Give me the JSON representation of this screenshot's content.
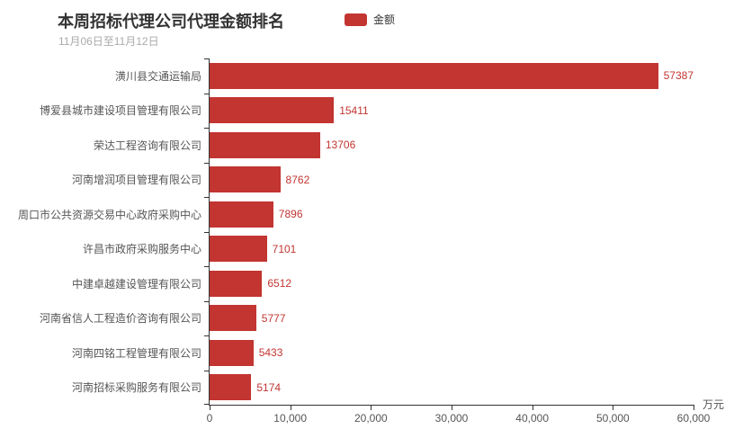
{
  "header": {
    "title": "本周招标代理公司代理金额排名",
    "subtitle": "11月06日至11月12日"
  },
  "legend": {
    "label": "金额",
    "swatch_color": "#c23531"
  },
  "chart_data": {
    "type": "bar",
    "orientation": "horizontal",
    "title": "本周招标代理公司代理金额排名",
    "subtitle": "11月06日至11月12日",
    "series_name": "金额",
    "categories": [
      "潢川县交通运输局",
      "博爱县城市建设项目管理有限公司",
      "荣达工程咨询有限公司",
      "河南增润项目管理有限公司",
      "周口市公共资源交易中心政府采购中心",
      "许昌市政府采购服务中心",
      "中建卓越建设管理有限公司",
      "河南省信人工程造价咨询有限公司",
      "河南四铭工程管理有限公司",
      "河南招标采购服务有限公司"
    ],
    "values": [
      57387,
      15411,
      13706,
      8762,
      7896,
      7101,
      6512,
      5777,
      5433,
      5174
    ],
    "xlim": [
      0,
      60000
    ],
    "x_tick_labels": [
      "0",
      "10,000",
      "20,000",
      "30,000",
      "40,000",
      "50,000",
      "60,000"
    ],
    "unit": "万元",
    "bar_color": "#c23531",
    "value_label_color": "#c23531",
    "grid": false,
    "legend_position": "top-center",
    "value_labels_shown": true
  }
}
